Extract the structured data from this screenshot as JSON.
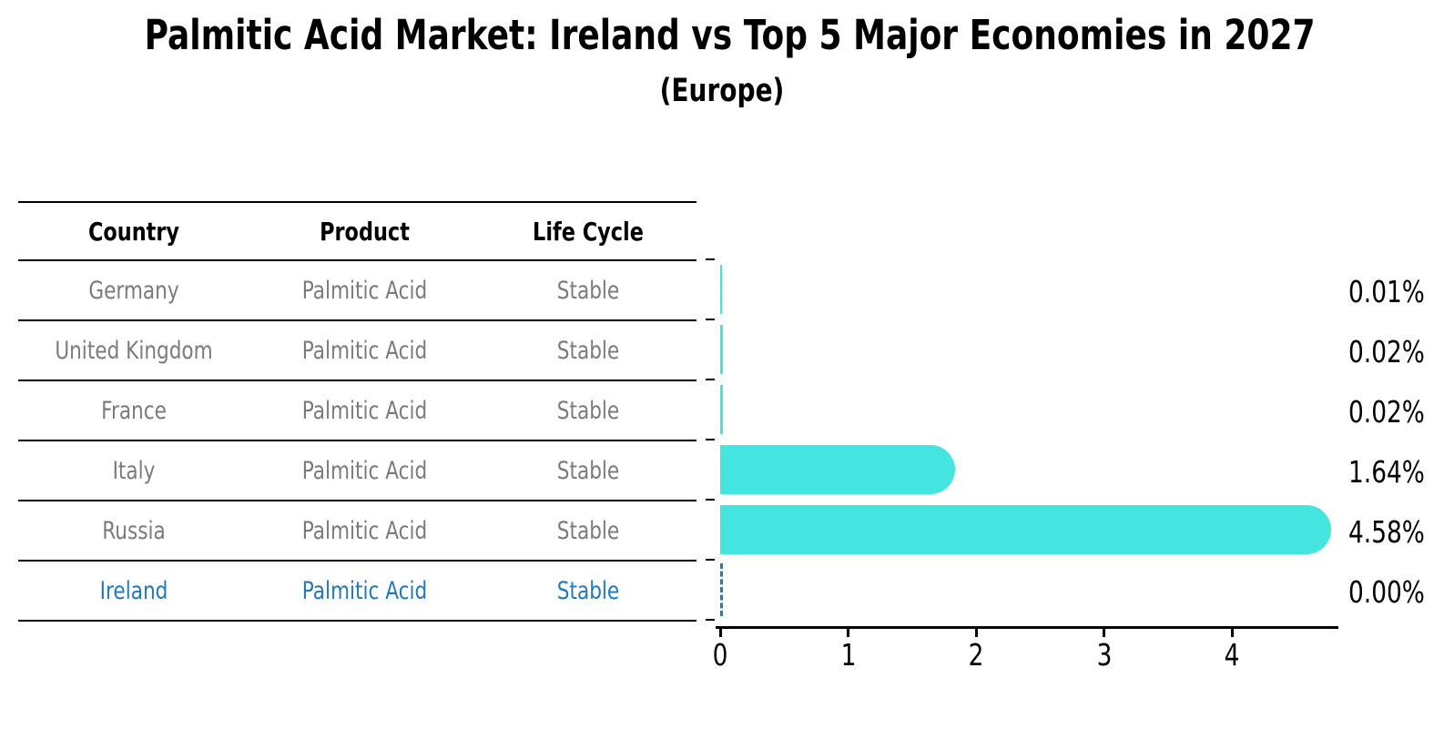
{
  "title": "Palmitic Acid Market: Ireland vs Top 5 Major Economies in 2027",
  "subtitle": "(Europe)",
  "table": {
    "headers": [
      "Country",
      "Product",
      "Life Cycle"
    ],
    "rows": [
      {
        "country": "Germany",
        "product": "Palmitic Acid",
        "life_cycle": "Stable"
      },
      {
        "country": "United Kingdom",
        "product": "Palmitic Acid",
        "life_cycle": "Stable"
      },
      {
        "country": "France",
        "product": "Palmitic Acid",
        "life_cycle": "Stable"
      },
      {
        "country": "Italy",
        "product": "Palmitic Acid",
        "life_cycle": "Stable"
      },
      {
        "country": "Russia",
        "product": "Palmitic Acid",
        "life_cycle": "Stable"
      },
      {
        "country": "Ireland",
        "product": "Palmitic Acid",
        "life_cycle": "Stable"
      }
    ]
  },
  "chart_data": {
    "type": "bar",
    "orientation": "horizontal",
    "title": "Palmitic Acid Market: Ireland vs Top 5 Major Economies in 2027 (Europe)",
    "categories": [
      "Germany",
      "United Kingdom",
      "France",
      "Italy",
      "Russia",
      "Ireland"
    ],
    "values": [
      0.01,
      0.02,
      0.02,
      1.64,
      4.58,
      0.0
    ],
    "value_labels": [
      "0.01%",
      "0.02%",
      "0.02%",
      "1.64%",
      "4.58%",
      "0.00%"
    ],
    "xticks": [
      0,
      1,
      2,
      3,
      4
    ],
    "xlim": [
      0,
      4.83
    ],
    "xlabel": "",
    "ylabel": "",
    "grid": false,
    "legend": "none",
    "highlight_category": "Ireland",
    "highlight_index": 5,
    "zero_bar_style": "dashed-line"
  },
  "colors": {
    "bar": "#44e5e0",
    "highlight": "#2478bc",
    "table_text": "#7b7b7b",
    "axis": "#000000",
    "background": "#ffffff"
  }
}
